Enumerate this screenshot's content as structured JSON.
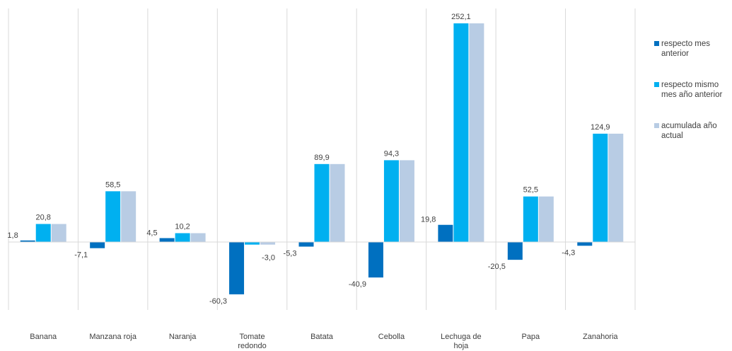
{
  "chart_data": {
    "type": "bar",
    "categories": [
      "Banana",
      "Manzana roja",
      "Naranja",
      "Tomate redondo",
      "Batata",
      "Cebolla",
      "Lechuga de hoja",
      "Papa",
      "Zanahoria"
    ],
    "series": [
      {
        "name": "respecto mes anterior",
        "color": "#0070C0",
        "values": [
          1.8,
          -7.1,
          4.5,
          -60.3,
          -5.3,
          -40.9,
          19.8,
          -20.5,
          -4.3
        ],
        "labels": [
          "1,8",
          "-7,1",
          "4,5",
          "-60,3",
          "-5,3",
          "-40,9",
          "19,8",
          "-20,5",
          "-4,3"
        ]
      },
      {
        "name": "respecto mismo mes año anterior",
        "color": "#00B0F0",
        "values": [
          20.8,
          58.5,
          10.2,
          -3.0,
          89.9,
          94.3,
          252.1,
          52.5,
          124.9
        ],
        "labels": [
          "20,8",
          "58,5",
          "10,2",
          "-3,0",
          "89,9",
          "94,3",
          "252,1",
          "52,5",
          "124,9"
        ]
      },
      {
        "name": "acumulada año actual",
        "color": "#B8CCE4",
        "values": [
          20.8,
          58.5,
          10.2,
          -3.0,
          89.9,
          94.3,
          252.1,
          52.5,
          124.9
        ],
        "labels": [
          "",
          "",
          "",
          "",
          "",
          "",
          "",
          "",
          ""
        ]
      }
    ],
    "ylim": [
      -75,
      252.1
    ],
    "legend_position": "right",
    "grid": false
  }
}
